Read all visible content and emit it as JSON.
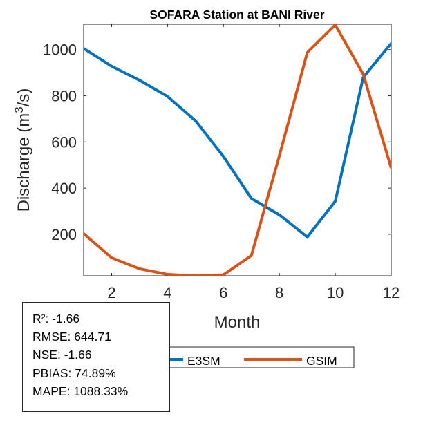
{
  "chart_data": {
    "type": "line",
    "title": "SOFARA  Station at  BANI  River",
    "xlabel": "Month",
    "ylabel_main": "Discharge (m",
    "ylabel_sup": "3",
    "ylabel_tail": "/s)",
    "xlim": [
      1,
      12
    ],
    "ylim": [
      20,
      1110
    ],
    "xticks": [
      2,
      4,
      6,
      8,
      10,
      12
    ],
    "yticks": [
      200,
      400,
      600,
      800,
      1000
    ],
    "grid": false,
    "legend_placement": "bottom-center",
    "x": [
      1,
      2,
      3,
      4,
      5,
      6,
      7,
      8,
      9,
      10,
      11,
      12
    ],
    "series": [
      {
        "name": "E3SM",
        "color": "#0072BD",
        "values": [
          1005,
          928,
          867,
          797,
          692,
          537,
          355,
          284,
          188,
          343,
          880,
          1027
        ]
      },
      {
        "name": "GSIM",
        "color": "#D95319",
        "values": [
          203,
          98,
          50,
          26,
          20,
          24,
          108,
          540,
          988,
          1107,
          893,
          487
        ]
      }
    ]
  },
  "stats": [
    "R²: -1.66",
    "RMSE: 644.71",
    "NSE: -1.66",
    "PBIAS: 74.89%",
    "MAPE: 1088.33%"
  ]
}
